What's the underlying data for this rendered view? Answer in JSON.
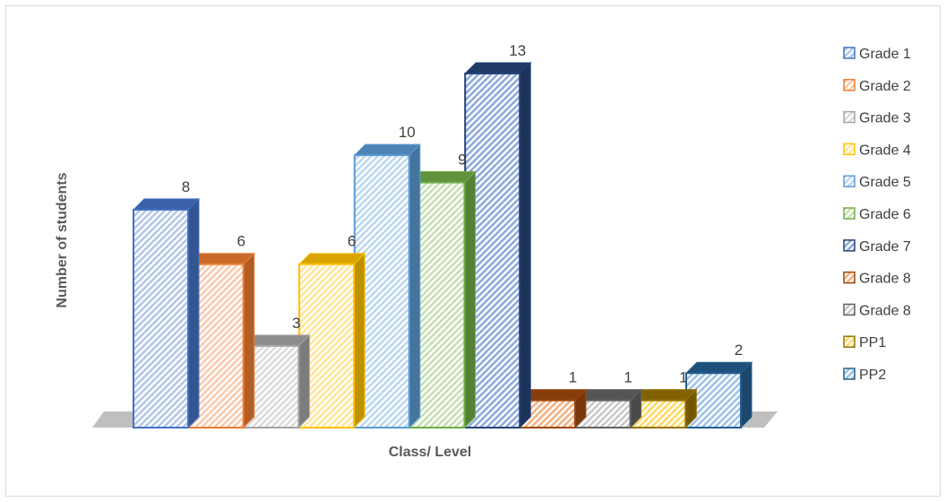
{
  "chart_data": {
    "type": "bar",
    "style": "3d-column",
    "categories": [
      "Grade 1",
      "Grade 2",
      "Grade 3",
      "Grade 4",
      "Grade 5",
      "Grade 6",
      "Grade 7",
      "Grade 8",
      "Grade 8",
      "PP1",
      "PP2"
    ],
    "values": [
      8,
      6,
      3,
      6,
      10,
      9,
      13,
      1,
      1,
      1,
      2
    ],
    "colors": [
      "#4472c4",
      "#ed7d31",
      "#a5a5a5",
      "#ffc000",
      "#5b9bd5",
      "#70ad47",
      "#264478",
      "#9e480e",
      "#636363",
      "#997300",
      "#255e91"
    ],
    "fills": [
      "#b4c7e7",
      "#f8cbad",
      "#dbdbdb",
      "#ffe699",
      "#bdd7ee",
      "#c5e0b4",
      "#8faadc",
      "#f4b183",
      "#c9c9c9",
      "#ffd966",
      "#9dc3e6"
    ],
    "title": "",
    "xlabel": "Class/ Level",
    "ylabel": "Number of students",
    "ylim": [
      0,
      13
    ],
    "grid": false,
    "legend": "right",
    "legend_entries": [
      "Grade 1",
      "Grade 2",
      "Grade 3",
      "Grade 4",
      "Grade 5",
      "Grade 6",
      "Grade 7",
      "Grade 8",
      "Grade 8",
      "PP1",
      "PP2"
    ]
  }
}
